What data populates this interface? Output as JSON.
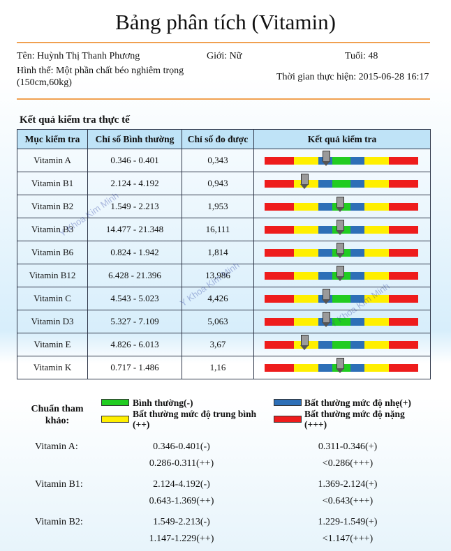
{
  "title": "Bảng phân tích (Vitamin)",
  "patient": {
    "name": "Tên: Huỳnh Thị Thanh Phương",
    "gender": "Giới: Nữ",
    "age": "Tuổi: 48",
    "body_line1": "Hình thể: Một phần chất béo nghiêm trọng",
    "body_line2": "(150cm,60kg)",
    "test_time": "Thời gian thực hiện: 2015-06-28 16:17"
  },
  "section_title": "Kết quả kiểm tra thực tế",
  "table": {
    "headers": [
      "Mục kiểm tra",
      "Chỉ số Bình thường",
      "Chỉ số đo được",
      "Kết quả kiểm tra"
    ],
    "rows": [
      {
        "item": "Vitamin A",
        "normal": "0.346 - 0.401",
        "measured": "0,343",
        "marker_fraction": 0.4
      },
      {
        "item": "Vitamin B1",
        "normal": "2.124 - 4.192",
        "measured": "0,943",
        "marker_fraction": 0.26
      },
      {
        "item": "Vitamin B2",
        "normal": "1.549 - 2.213",
        "measured": "1,953",
        "marker_fraction": 0.49
      },
      {
        "item": "Vitamin B3",
        "normal": "14.477 - 21.348",
        "measured": "16,111",
        "marker_fraction": 0.49
      },
      {
        "item": "Vitamin B6",
        "normal": "0.824 - 1.942",
        "measured": "1,814",
        "marker_fraction": 0.49
      },
      {
        "item": "Vitamin B12",
        "normal": "6.428 - 21.396",
        "measured": "13,986",
        "marker_fraction": 0.49
      },
      {
        "item": "Vitamin C",
        "normal": "4.543 - 5.023",
        "measured": "4,426",
        "marker_fraction": 0.4
      },
      {
        "item": "Vitamin D3",
        "normal": "5.327 - 7.109",
        "measured": "5,063",
        "marker_fraction": 0.4
      },
      {
        "item": "Vitamin E",
        "normal": "4.826 - 6.013",
        "measured": "3,67",
        "marker_fraction": 0.26
      },
      {
        "item": "Vitamin K",
        "normal": "0.717 - 1.486",
        "measured": "1,16",
        "marker_fraction": 0.49
      }
    ]
  },
  "watermark": "Y Khoa Kim Minh",
  "legend": {
    "heading": "Chuẩn tham khảo:",
    "normal": "Bình thường(-)",
    "mild": "Bất thường mức độ nhẹ(+)",
    "moderate": "Bất thường mức độ trung bình (++)",
    "severe": "Bất thường mức độ nặng (+++)"
  },
  "colors": {
    "red": "#ee1c1c",
    "yellow": "#ffef00",
    "blue": "#2d6fb7",
    "green": "#21cc21",
    "accent_rule": "#f0a050"
  },
  "reference": [
    {
      "name": "Vitamin A:",
      "v1": "0.346-0.401(-)",
      "v2": "0.311-0.346(+)",
      "v3": "0.286-0.311(++)",
      "v4": "<0.286(+++)"
    },
    {
      "name": "Vitamin B1:",
      "v1": "2.124-4.192(-)",
      "v2": "1.369-2.124(+)",
      "v3": "0.643-1.369(++)",
      "v4": "<0.643(+++)"
    },
    {
      "name": "Vitamin B2:",
      "v1": "1.549-2.213(-)",
      "v2": "1.229-1.549(+)",
      "v3": "1.147-1.229(++)",
      "v4": "<1.147(+++)"
    }
  ]
}
